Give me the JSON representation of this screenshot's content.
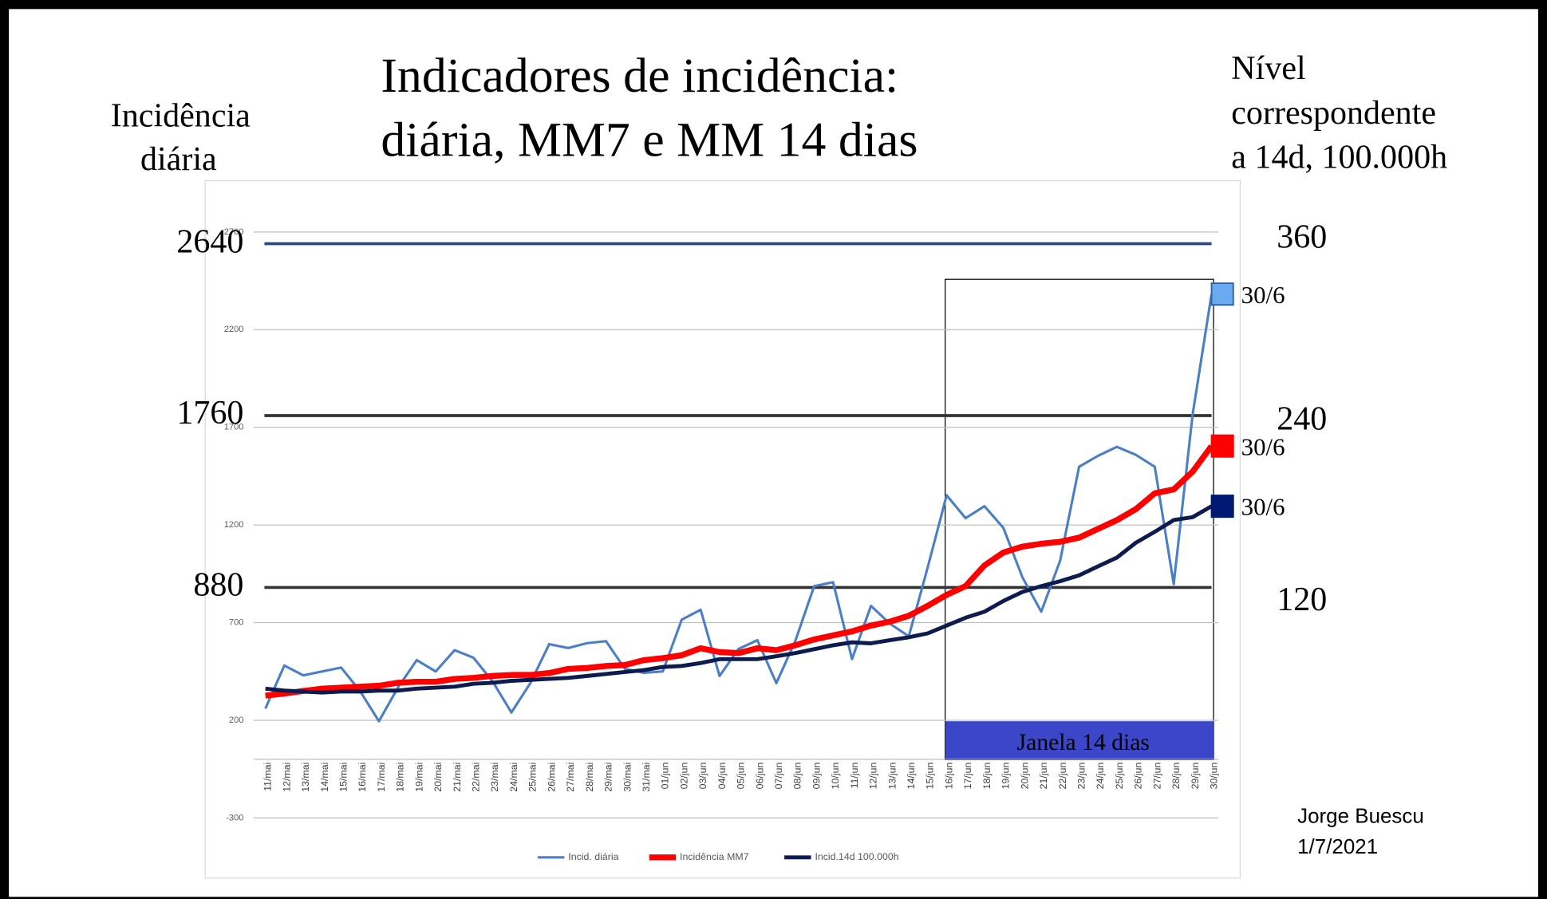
{
  "chart_data": {
    "type": "line",
    "title": [
      "Indicadores de incidência:",
      "diária, MM7 e MM 14 dias"
    ],
    "y_label": [
      "Incidência",
      "diária"
    ],
    "y2_label": [
      "Nível",
      "correspondente",
      "a 14d, 100.000h"
    ],
    "note": [
      "Jorge Buescu",
      "1/7/2021"
    ],
    "window_label": "Janela 14 dias",
    "categories": [
      "11/mai",
      "12/mai",
      "13/mai",
      "14/mai",
      "15/mai",
      "16/mai",
      "17/mai",
      "18/mai",
      "19/mai",
      "20/mai",
      "21/mai",
      "22/mai",
      "23/mai",
      "24/mai",
      "25/mai",
      "26/mai",
      "27/mai",
      "28/mai",
      "29/mai",
      "30/mai",
      "31/mai",
      "01/jun",
      "02/jun",
      "03/jun",
      "04/jun",
      "05/jun",
      "06/jun",
      "07/jun",
      "08/jun",
      "09/jun",
      "10/jun",
      "11/jun",
      "12/jun",
      "13/jun",
      "14/jun",
      "15/jun",
      "16/jun",
      "17/jun",
      "18/jun",
      "19/jun",
      "20/jun",
      "21/jun",
      "22/jun",
      "23/jun",
      "24/jun",
      "25/jun",
      "26/jun",
      "27/jun",
      "28/jun",
      "29/jun",
      "30/jun"
    ],
    "series": [
      {
        "name": "Incid. diária",
        "color": "#4a7ec8",
        "marker_color": "#6aaaf0",
        "end_label": "30/6",
        "values": [
          260,
          480,
          430,
          450,
          470,
          350,
          195,
          367,
          508,
          450,
          559,
          520,
          400,
          240,
          390,
          590,
          570,
          595,
          605,
          463,
          443,
          450,
          715,
          766,
          427,
          565,
          610,
          390,
          605,
          887,
          907,
          513,
          786,
          695,
          630,
          983,
          1352,
          1235,
          1296,
          1185,
          933,
          756,
          1018,
          1498,
          1554,
          1600,
          1559,
          1498,
          897,
          1766,
          2382
        ]
      },
      {
        "name": "Incidência MM7",
        "color": "#ff0000",
        "marker_color": "#ff0000",
        "end_label": "30/6",
        "values": [
          326,
          337,
          350,
          362,
          367,
          372,
          377,
          392,
          397,
          397,
          412,
          417,
          427,
          432,
          432,
          442,
          463,
          468,
          478,
          483,
          508,
          518,
          533,
          569,
          549,
          544,
          569,
          559,
          584,
          614,
          635,
          655,
          685,
          705,
          735,
          786,
          842,
          887,
          993,
          1059,
          1089,
          1104,
          1114,
          1135,
          1180,
          1225,
          1281,
          1362,
          1382,
          1473,
          1604
        ]
      },
      {
        "name": "Incid.14d 100.000h",
        "color": "#0d1b4f",
        "marker_color": "#001a73",
        "end_label": "30/6",
        "values": [
          362,
          352,
          347,
          342,
          347,
          347,
          352,
          352,
          362,
          367,
          372,
          387,
          392,
          402,
          407,
          412,
          417,
          427,
          437,
          447,
          457,
          473,
          478,
          493,
          513,
          513,
          513,
          528,
          544,
          564,
          584,
          599,
          594,
          610,
          625,
          645,
          685,
          725,
          756,
          811,
          857,
          887,
          912,
          942,
          988,
          1033,
          1109,
          1165,
          1225,
          1240,
          1296
        ]
      }
    ],
    "reference_lines": [
      {
        "value": 2640,
        "level": 360,
        "color": "#2e4a7a"
      },
      {
        "value": 1760,
        "level": 240,
        "color": "#333333"
      },
      {
        "value": 880,
        "level": 120,
        "color": "#333333"
      }
    ],
    "ylim": [
      -300,
      2700
    ],
    "yticks": [
      -300,
      200,
      700,
      1200,
      1700,
      2200,
      2700
    ],
    "grid": true
  }
}
